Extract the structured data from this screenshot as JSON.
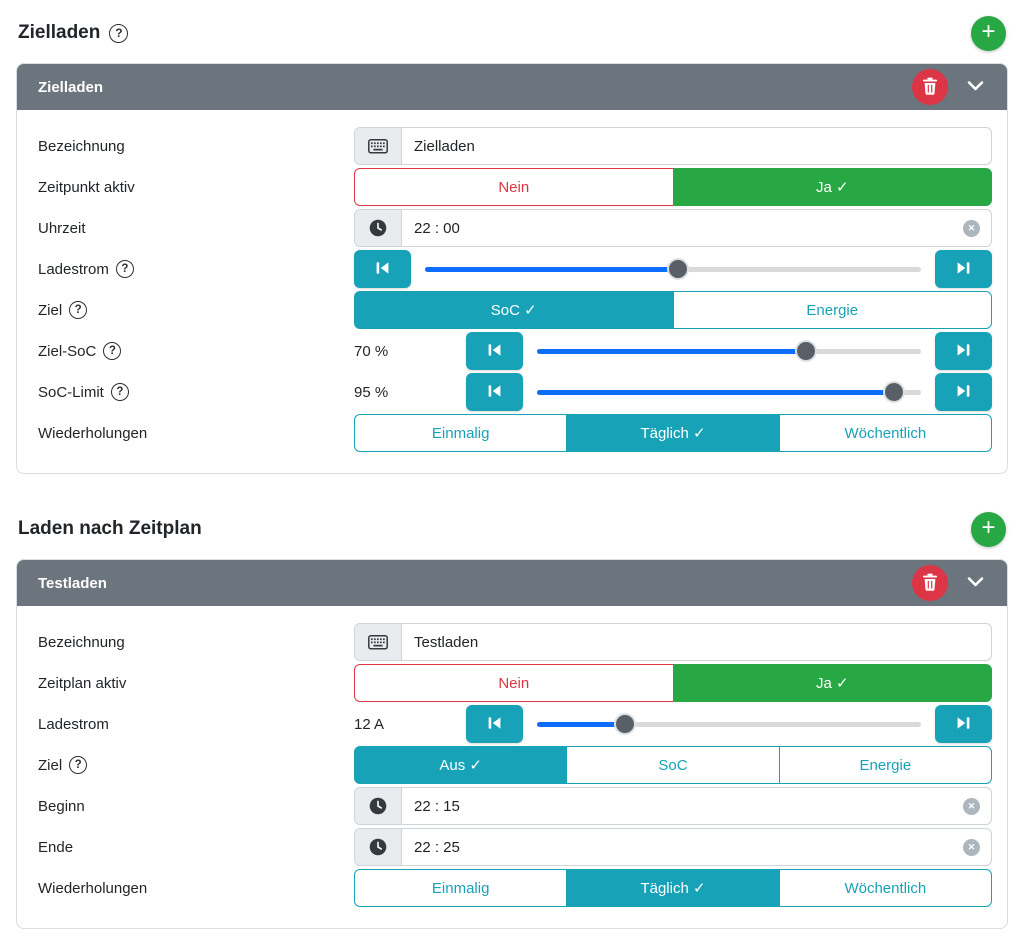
{
  "colors": {
    "teal": "#17a2b8",
    "green": "#28a745",
    "red": "#dc3545",
    "header_gray": "#6c757d",
    "slider_blue": "#0d6efd"
  },
  "check_mark": "✓",
  "icons": {
    "add": "plus-circle",
    "delete": "trash",
    "collapse": "chevron-down",
    "help": "question-circle",
    "clear": "x-circle",
    "slider_min": "skip-start",
    "slider_max": "skip-end",
    "text_prefix": "keyboard",
    "time_prefix": "clock"
  },
  "sections": [
    {
      "title": "Zielladen",
      "title_help": true,
      "card": {
        "header_title": "Zielladen",
        "rows": [
          {
            "type": "text",
            "label": "Bezeichnung",
            "help": false,
            "icon": "keyboard",
            "value": "Zielladen"
          },
          {
            "type": "toggle",
            "label": "Zeitpunkt aktiv",
            "help": false,
            "options": [
              {
                "label": "Nein",
                "theme": "danger",
                "selected": false
              },
              {
                "label": "Ja",
                "theme": "success",
                "selected": true
              }
            ]
          },
          {
            "type": "time",
            "label": "Uhrzeit",
            "help": false,
            "icon": "clock",
            "value": "22 : 00"
          },
          {
            "type": "slider",
            "label": "Ladestrom",
            "help": true,
            "value_label": null,
            "fill_percent": 51
          },
          {
            "type": "toggle",
            "label": "Ziel",
            "help": true,
            "options": [
              {
                "label": "SoC",
                "theme": "teal",
                "selected": true
              },
              {
                "label": "Energie",
                "theme": "teal",
                "selected": false
              }
            ]
          },
          {
            "type": "slider",
            "label": "Ziel-SoC",
            "help": true,
            "value_label": "70 %",
            "fill_percent": 70
          },
          {
            "type": "slider",
            "label": "SoC-Limit",
            "help": true,
            "value_label": "95 %",
            "fill_percent": 93
          },
          {
            "type": "toggle",
            "label": "Wiederholungen",
            "help": false,
            "options": [
              {
                "label": "Einmalig",
                "theme": "teal",
                "selected": false
              },
              {
                "label": "Täglich",
                "theme": "teal",
                "selected": true
              },
              {
                "label": "Wöchentlich",
                "theme": "teal",
                "selected": false
              }
            ]
          }
        ]
      }
    },
    {
      "title": "Laden nach Zeitplan",
      "title_help": false,
      "card": {
        "header_title": "Testladen",
        "rows": [
          {
            "type": "text",
            "label": "Bezeichnung",
            "help": false,
            "icon": "keyboard",
            "value": "Testladen"
          },
          {
            "type": "toggle",
            "label": "Zeitplan aktiv",
            "help": false,
            "options": [
              {
                "label": "Nein",
                "theme": "danger",
                "selected": false
              },
              {
                "label": "Ja",
                "theme": "success",
                "selected": true
              }
            ]
          },
          {
            "type": "slider",
            "label": "Ladestrom",
            "help": false,
            "value_label": "12 A",
            "fill_percent": 23
          },
          {
            "type": "toggle",
            "label": "Ziel",
            "help": true,
            "options": [
              {
                "label": "Aus",
                "theme": "teal",
                "selected": true
              },
              {
                "label": "SoC",
                "theme": "teal",
                "selected": false
              },
              {
                "label": "Energie",
                "theme": "teal",
                "selected": false
              }
            ]
          },
          {
            "type": "time",
            "label": "Beginn",
            "help": false,
            "icon": "clock",
            "value": "22 : 15"
          },
          {
            "type": "time",
            "label": "Ende",
            "help": false,
            "icon": "clock",
            "value": "22 : 25"
          },
          {
            "type": "toggle",
            "label": "Wiederholungen",
            "help": false,
            "options": [
              {
                "label": "Einmalig",
                "theme": "teal",
                "selected": false
              },
              {
                "label": "Täglich",
                "theme": "teal",
                "selected": true
              },
              {
                "label": "Wöchentlich",
                "theme": "teal",
                "selected": false
              }
            ]
          }
        ]
      }
    }
  ]
}
